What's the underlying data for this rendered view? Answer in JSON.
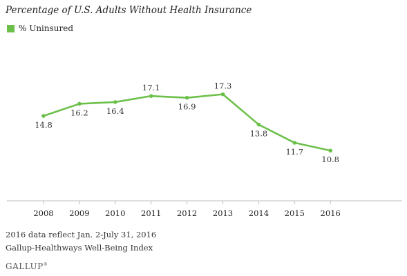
{
  "title": "Percentage of U.S. Adults Without Health Insurance",
  "legend": {
    "label": "% Uninsured"
  },
  "colors": {
    "series": "#6cc04a",
    "axis": "#bdbdbd",
    "text": "#333333"
  },
  "chart_data": {
    "type": "line",
    "title": "Percentage of U.S. Adults Without Health Insurance",
    "xlabel": "",
    "ylabel": "",
    "categories": [
      "2008",
      "2009",
      "2010",
      "2011",
      "2012",
      "2013",
      "2014",
      "2015",
      "2016"
    ],
    "series": [
      {
        "name": "% Uninsured",
        "values": [
          14.8,
          16.2,
          16.4,
          17.1,
          16.9,
          17.3,
          13.8,
          11.7,
          10.8
        ]
      }
    ],
    "ylim": [
      5,
      25
    ],
    "grid": false,
    "legend_position": "top-left",
    "data_labels": true
  },
  "footnotes": {
    "note1": "2016 data reflect Jan. 2-July 31, 2016",
    "note2": "Gallup-Healthways Well-Being Index"
  },
  "logo": {
    "text": "GALLUP",
    "mark": "®"
  }
}
